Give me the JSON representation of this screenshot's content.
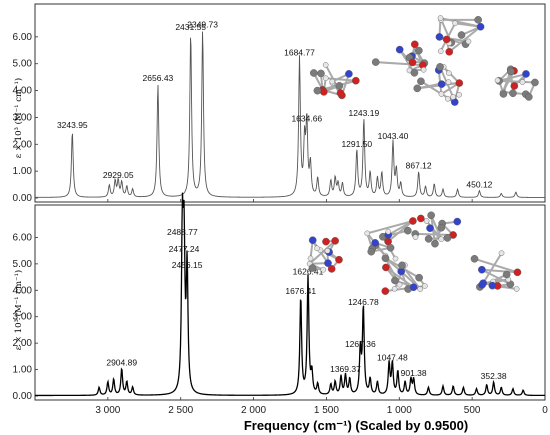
{
  "chart_data": {
    "type": "line",
    "xlabel": "Frequency (cm⁻¹) (Scaled by 0.9500)",
    "ylabel": "ε × 10³ (M⁻¹ cm⁻¹)",
    "x_reversed": true,
    "xlim": [
      3500,
      0
    ],
    "x_ticks": [
      3000,
      2500,
      2000,
      1500,
      1000,
      500,
      0
    ],
    "x_tick_labels": [
      "3 000",
      "2 500",
      "2 000",
      "1 500",
      "1 000",
      "500",
      "0"
    ],
    "ylim": [
      0,
      7
    ],
    "y_ticks": [
      0,
      1,
      2,
      3,
      4,
      5,
      6
    ],
    "y_tick_labels": [
      "0.00",
      "1.00",
      "2.00",
      "3.00",
      "4.00",
      "5.00",
      "6.00"
    ],
    "grid": false,
    "panels": [
      {
        "line_color": "#555555",
        "peaks": [
          {
            "x": 3243.95,
            "y": 2.45,
            "label": "3243.95"
          },
          {
            "x": 2990,
            "y": 0.45
          },
          {
            "x": 2950,
            "y": 0.6
          },
          {
            "x": 2929.05,
            "y": 0.6,
            "label": "2929.05"
          },
          {
            "x": 2905,
            "y": 0.55
          },
          {
            "x": 2870,
            "y": 0.4
          },
          {
            "x": 2830,
            "y": 0.3
          },
          {
            "x": 2656.43,
            "y": 4.2,
            "label": "2656.43"
          },
          {
            "x": 2431.55,
            "y": 6.1,
            "label": "2431.55"
          },
          {
            "x": 2349.73,
            "y": 6.2,
            "label": "2349.73"
          },
          {
            "x": 1684.77,
            "y": 5.15,
            "label": "1684.77"
          },
          {
            "x": 1634.66,
            "y": 2.7,
            "label": "1634.66"
          },
          {
            "x": 1650,
            "y": 2.0
          },
          {
            "x": 1610,
            "y": 1.2
          },
          {
            "x": 1560,
            "y": 0.7
          },
          {
            "x": 1470,
            "y": 0.6
          },
          {
            "x": 1440,
            "y": 0.7
          },
          {
            "x": 1420,
            "y": 0.5
          },
          {
            "x": 1390,
            "y": 0.5
          },
          {
            "x": 1291.5,
            "y": 1.75,
            "label": "1291.50"
          },
          {
            "x": 1243.19,
            "y": 2.9,
            "label": "1243.19"
          },
          {
            "x": 1200,
            "y": 0.9
          },
          {
            "x": 1150,
            "y": 0.7
          },
          {
            "x": 1120,
            "y": 0.9
          },
          {
            "x": 1043.4,
            "y": 2.05,
            "label": "1043.40"
          },
          {
            "x": 1020,
            "y": 1.0
          },
          {
            "x": 990,
            "y": 0.5
          },
          {
            "x": 867.12,
            "y": 0.95,
            "label": "867.12"
          },
          {
            "x": 820,
            "y": 0.4
          },
          {
            "x": 760,
            "y": 0.5
          },
          {
            "x": 700,
            "y": 0.3
          },
          {
            "x": 600,
            "y": 0.3
          },
          {
            "x": 450.12,
            "y": 0.25,
            "label": "450.12"
          },
          {
            "x": 300,
            "y": 0.15
          },
          {
            "x": 200,
            "y": 0.2
          }
        ]
      },
      {
        "line_color": "#000000",
        "peaks": [
          {
            "x": 3060,
            "y": 0.3
          },
          {
            "x": 3000,
            "y": 0.5
          },
          {
            "x": 2960,
            "y": 0.6
          },
          {
            "x": 2904.89,
            "y": 1.0,
            "label": "2904.89"
          },
          {
            "x": 2870,
            "y": 0.5
          },
          {
            "x": 2830,
            "y": 0.3
          },
          {
            "x": 2488.77,
            "y": 5.95,
            "label": "2488.77"
          },
          {
            "x": 2477.24,
            "y": 5.3,
            "label": "2477.24"
          },
          {
            "x": 2456.15,
            "y": 4.7,
            "label": "2456.15"
          },
          {
            "x": 1676.41,
            "y": 3.7,
            "label": "1676.41"
          },
          {
            "x": 1626.41,
            "y": 4.45,
            "label": "1626.41"
          },
          {
            "x": 1600,
            "y": 0.8
          },
          {
            "x": 1560,
            "y": 0.4
          },
          {
            "x": 1470,
            "y": 0.4
          },
          {
            "x": 1440,
            "y": 0.5
          },
          {
            "x": 1400,
            "y": 0.7
          },
          {
            "x": 1369.37,
            "y": 0.75,
            "label": "1369.37"
          },
          {
            "x": 1340,
            "y": 0.6
          },
          {
            "x": 1267.36,
            "y": 1.7,
            "label": "1267.36"
          },
          {
            "x": 1246.78,
            "y": 3.3,
            "label": "1246.78"
          },
          {
            "x": 1200,
            "y": 0.6
          },
          {
            "x": 1150,
            "y": 0.5
          },
          {
            "x": 1070,
            "y": 1.2
          },
          {
            "x": 1047.48,
            "y": 1.2,
            "label": "1047.48"
          },
          {
            "x": 1010,
            "y": 0.9
          },
          {
            "x": 960,
            "y": 0.5
          },
          {
            "x": 920,
            "y": 0.6
          },
          {
            "x": 901.38,
            "y": 0.6,
            "label": "901.38"
          },
          {
            "x": 800,
            "y": 0.3
          },
          {
            "x": 700,
            "y": 0.35
          },
          {
            "x": 630,
            "y": 0.35
          },
          {
            "x": 560,
            "y": 0.3
          },
          {
            "x": 470,
            "y": 0.25
          },
          {
            "x": 400,
            "y": 0.4
          },
          {
            "x": 352.38,
            "y": 0.5,
            "label": "352.38"
          },
          {
            "x": 300,
            "y": 0.3
          },
          {
            "x": 220,
            "y": 0.25
          },
          {
            "x": 150,
            "y": 0.2
          }
        ]
      }
    ]
  }
}
